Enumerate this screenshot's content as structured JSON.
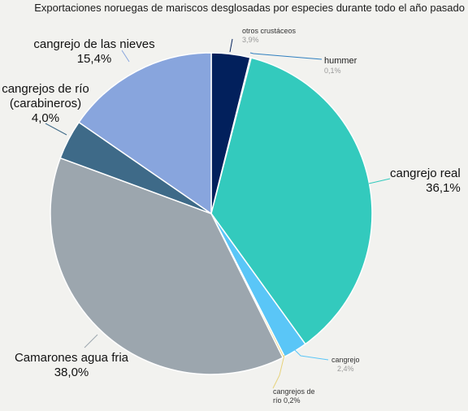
{
  "chart_data": {
    "type": "pie",
    "title": "Exportaciones noruegas de mariscos desglosadas por especies durante todo el año pasado",
    "slices": [
      {
        "name": "otros crustáceos",
        "value": 3.9,
        "value_label": "3,9%",
        "color": "#02205c"
      },
      {
        "name": "hummer",
        "value": 0.1,
        "value_label": "0,1%",
        "color": "#2f7fbf"
      },
      {
        "name": "cangrejo real",
        "value": 36.1,
        "value_label": "36,1%",
        "color": "#33cabd"
      },
      {
        "name": "cangrejo",
        "value": 2.4,
        "value_label": "2,4%",
        "color": "#5ac6f7"
      },
      {
        "name": "cangrejos de río",
        "value": 0.2,
        "value_label": "0,2%",
        "color": "#e7d27a"
      },
      {
        "name": "Camarones agua fria",
        "value": 38.0,
        "value_label": "38,0%",
        "color": "#9ca6ae"
      },
      {
        "name": "cangrejos de río (carabineros)",
        "value": 4.0,
        "value_label": "4,0%",
        "color": "#3e6a88"
      },
      {
        "name": "cangrejo de las nieves",
        "value": 15.4,
        "value_label": "15,4%",
        "color": "#88a5dd"
      }
    ],
    "labels": {
      "otros_name": "otros crustáceos",
      "otros_pct": "3,9%",
      "hummer_name": "hummer",
      "hummer_pct": "0,1%",
      "real_name": "cangrejo real",
      "real_pct": "36,1%",
      "cangrejo_name": "cangrejo",
      "cangrejo_pct": "2,4%",
      "rio_name_1": "cangrejos de",
      "rio_name_2": "río 0,2%",
      "camarones_name": "Camarones agua fria",
      "camarones_pct": "38,0%",
      "carab_name_1": "cangrejos de río",
      "carab_name_2": "(carabineros)",
      "carab_pct": "4,0%",
      "nieves_name": "cangrejo de las nieves",
      "nieves_pct": "15,4%"
    }
  }
}
